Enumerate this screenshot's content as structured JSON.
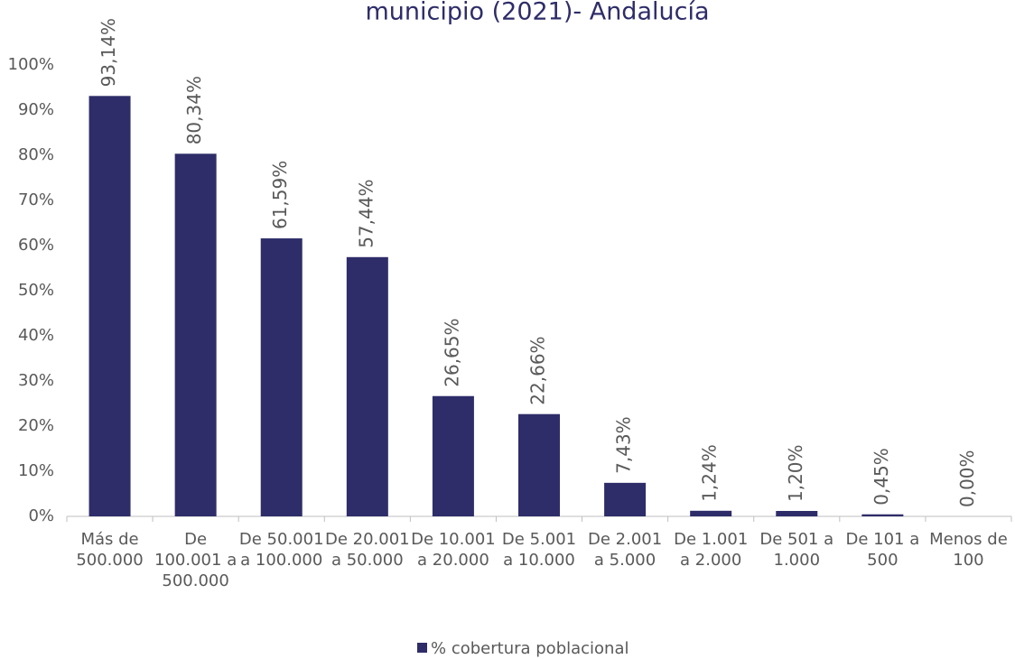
{
  "chart_data": {
    "type": "bar",
    "title": "municipio (2021)- Andalucía",
    "categories": [
      "Más de 500.000",
      "De 100.001 a 500.000",
      "De 50.001 a 100.000",
      "De 20.001 a 50.000",
      "De 10.001 a 20.000",
      "De 5.001 a 10.000",
      "De 2.001 a 5.000",
      "De 1.001 a 2.000",
      "De 501 a 1.000",
      "De 101 a 500",
      "Menos de 100"
    ],
    "series": [
      {
        "name": "% cobertura poblacional",
        "color": "#2e2d69",
        "values": [
          93.14,
          80.34,
          61.59,
          57.44,
          26.65,
          22.66,
          7.43,
          1.24,
          1.2,
          0.45,
          0.0
        ],
        "value_labels": [
          "93,14%",
          "80,34%",
          "61,59%",
          "57,44%",
          "26,65%",
          "22,66%",
          "7,43%",
          "1,24%",
          "1,20%",
          "0,45%",
          "0,00%"
        ]
      }
    ],
    "ylim": [
      0,
      100
    ],
    "yticks": [
      {
        "value": 0,
        "label": "0%"
      },
      {
        "value": 10,
        "label": "10%"
      },
      {
        "value": 20,
        "label": "20%"
      },
      {
        "value": 30,
        "label": "30%"
      },
      {
        "value": 40,
        "label": "40%"
      },
      {
        "value": 50,
        "label": "50%"
      },
      {
        "value": 60,
        "label": "60%"
      },
      {
        "value": 70,
        "label": "70%"
      },
      {
        "value": 80,
        "label": "80%"
      },
      {
        "value": 90,
        "label": "90%"
      },
      {
        "value": 100,
        "label": "100%"
      }
    ],
    "grid": false,
    "legend": "bottom"
  }
}
